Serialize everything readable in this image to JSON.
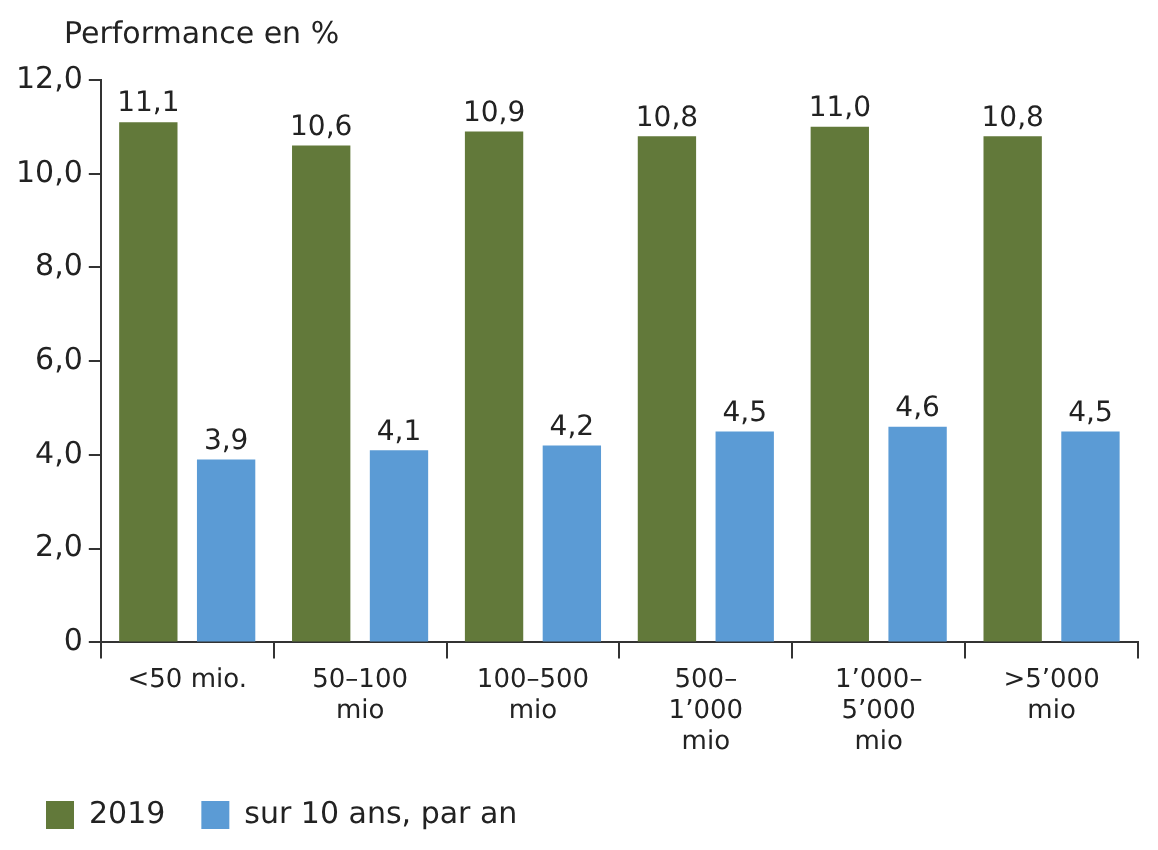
{
  "chart_data": {
    "type": "bar",
    "ylabel": "Performance en %",
    "categories": [
      "<50 mio.",
      "50–100 mio",
      "100–500 mio",
      "500–1’000 mio",
      "1’000–5’000 mio",
      ">5’000 mio"
    ],
    "series": [
      {
        "name": "2019",
        "color": "#62793a",
        "values": [
          11.1,
          10.6,
          10.9,
          10.8,
          11.0,
          10.8
        ],
        "value_labels": [
          "11,1",
          "10,6",
          "10,9",
          "10,8",
          "11,0",
          "10,8"
        ]
      },
      {
        "name": "sur 10 ans, par an",
        "color": "#5b9bd5",
        "values": [
          3.9,
          4.1,
          4.2,
          4.5,
          4.6,
          4.5
        ],
        "value_labels": [
          "3,9",
          "4,1",
          "4,2",
          "4,5",
          "4,6",
          "4,5"
        ]
      }
    ],
    "ylim": [
      0,
      12
    ],
    "yticks": [
      {
        "value": 0,
        "label": "0"
      },
      {
        "value": 2,
        "label": "2,0"
      },
      {
        "value": 4,
        "label": "4,0"
      },
      {
        "value": 6,
        "label": "6,0"
      },
      {
        "value": 8,
        "label": "8,0"
      },
      {
        "value": 10,
        "label": "10,0"
      },
      {
        "value": 12,
        "label": "12,0"
      }
    ],
    "grid": false,
    "legend": "bottom left"
  }
}
